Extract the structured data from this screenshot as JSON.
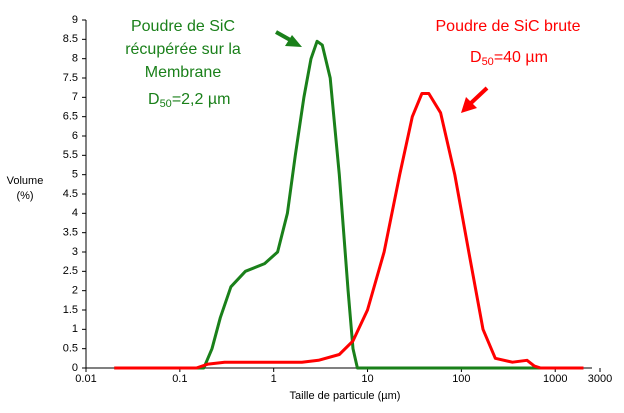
{
  "chart_data": {
    "type": "line",
    "ylabel": [
      "Volume",
      "(%)"
    ],
    "xlabel": "Taille de particule (µm)",
    "log_x": true,
    "xlim": [
      0.01,
      3000
    ],
    "xticks": [
      0.01,
      0.1,
      1,
      10,
      100,
      1000,
      3000
    ],
    "ylim": [
      0,
      9
    ],
    "yticks": [
      0,
      0.5,
      1,
      1.5,
      2,
      2.5,
      3,
      3.5,
      4,
      4.5,
      5,
      5.5,
      6,
      6.5,
      7,
      7.5,
      8,
      8.5,
      9
    ],
    "series": [
      {
        "color": "#1a801a",
        "x": [
          0.02,
          0.1,
          0.18,
          0.22,
          0.27,
          0.35,
          0.5,
          0.8,
          1.1,
          1.4,
          1.7,
          2.1,
          2.5,
          2.9,
          3.3,
          4,
          5,
          6.2,
          7,
          7.8,
          20,
          2000
        ],
        "values": [
          0,
          0,
          0,
          0.5,
          1.3,
          2.1,
          2.5,
          2.7,
          3,
          4,
          5.5,
          7,
          8,
          8.45,
          8.35,
          7.5,
          5,
          2,
          0.5,
          0,
          0,
          0
        ]
      },
      {
        "color": "#ff0000",
        "x": [
          0.02,
          0.1,
          0.15,
          0.2,
          0.3,
          1,
          2,
          3,
          5,
          7,
          10,
          15,
          22,
          30,
          38,
          45,
          60,
          85,
          120,
          170,
          230,
          350,
          500,
          600,
          700,
          2000
        ],
        "values": [
          0,
          0,
          0,
          0.1,
          0.15,
          0.15,
          0.15,
          0.2,
          0.35,
          0.7,
          1.5,
          3,
          5,
          6.5,
          7.1,
          7.1,
          6.6,
          5,
          3,
          1,
          0.25,
          0.15,
          0.2,
          0.05,
          0,
          0
        ]
      }
    ],
    "annotations": [
      {
        "lines": [
          "Poudre de SiC",
          "récupérée sur la",
          "Membrane"
        ],
        "d": "D",
        "sub": "50",
        "rest": "=2,2 µm"
      },
      {
        "lines": [
          "Poudre de SiC brute"
        ],
        "d": "D",
        "sub": "50",
        "rest": "=40 µm"
      }
    ]
  }
}
